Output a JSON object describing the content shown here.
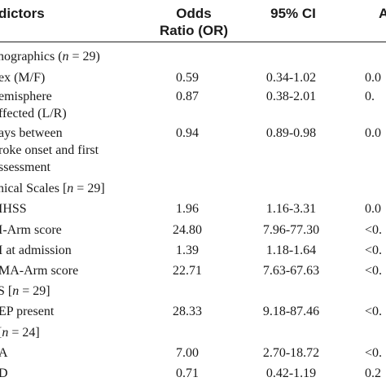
{
  "headers": {
    "predictors": "dictors",
    "or_line1": "Odds",
    "or_line2": "Ratio (OR)",
    "ci": "95% CI",
    "p": "A"
  },
  "rows": [
    {
      "type": "section",
      "pre": "nographics (",
      "n_var": "n",
      "post": " = 29)"
    },
    {
      "type": "data",
      "lines": [
        "ex (M/F)"
      ],
      "or": "0.59",
      "ci": "0.34-1.02",
      "p": "0.0"
    },
    {
      "type": "data",
      "lines": [
        "emisphere",
        "ffected (L/R)"
      ],
      "or": "0.87",
      "ci": "0.38-2.01",
      "p": "0."
    },
    {
      "type": "data",
      "lines": [
        "ays between",
        "roke onset and first",
        "ssessment"
      ],
      "or": "0.94",
      "ci": "0.89-0.98",
      "p": "0.0"
    },
    {
      "type": "section",
      "pre": "nical Scales [",
      "n_var": "n",
      "post": " = 29]"
    },
    {
      "type": "data",
      "lines": [
        "IHSS"
      ],
      "or": "1.96",
      "ci": "1.16-3.31",
      "p": "0.0"
    },
    {
      "type": "data",
      "lines": [
        "I-Arm score"
      ],
      "or": "24.80",
      "ci": "7.96-77.30",
      "p": "<0."
    },
    {
      "type": "data",
      "lines": [
        "I at admission"
      ],
      "or": "1.39",
      "ci": "1.18-1.64",
      "p": "<0."
    },
    {
      "type": "data",
      "lines": [
        "MA-Arm score"
      ],
      "or": "22.71",
      "ci": "7.63-67.63",
      "p": "<0."
    },
    {
      "type": "section",
      "pre": "S [",
      "n_var": "n",
      "post": " = 29]"
    },
    {
      "type": "data",
      "lines": [
        "EP present"
      ],
      "or": "28.33",
      "ci": "9.18-87.46",
      "p": "<0."
    },
    {
      "type": "section",
      "pre": "[",
      "n_var": "n",
      "post": " = 24]"
    },
    {
      "type": "data",
      "lines": [
        "A"
      ],
      "or": "7.00",
      "ci": "2.70-18.72",
      "p": "<0."
    },
    {
      "type": "data",
      "lines": [
        "D"
      ],
      "or": "0.71",
      "ci": "0.42-1.19",
      "p": "0.2"
    }
  ]
}
